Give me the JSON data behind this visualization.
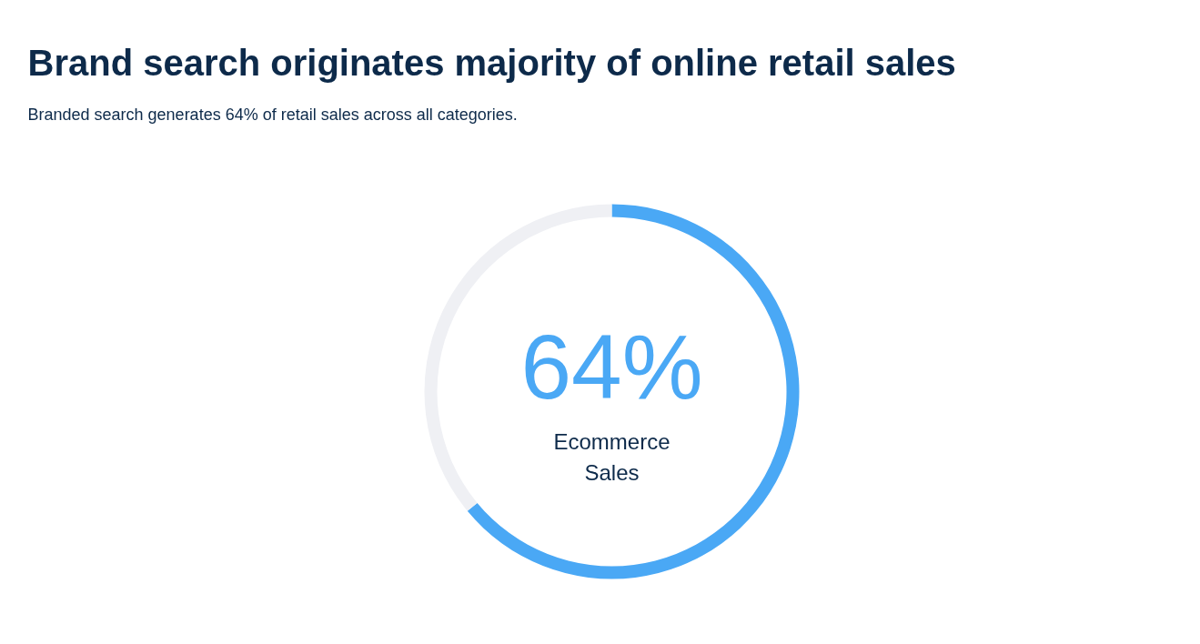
{
  "chart_data": {
    "type": "donut",
    "title": "Brand search originates majority of online retail sales",
    "subtitle": "Branded search generates 64% of retail sales across all categories.",
    "categories": [
      "Ecommerce Sales",
      null
    ],
    "values": [
      64,
      36
    ],
    "colors": [
      "#4aa8f5",
      "#eff0f4"
    ],
    "value_labels": [
      "64%",
      null
    ]
  }
}
